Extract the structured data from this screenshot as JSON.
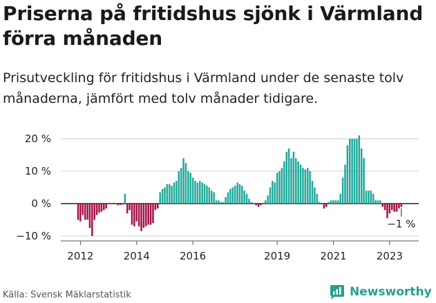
{
  "title": "Priserna på fritidshus sjönk i Värmland förra månaden",
  "subtitle": "Prisutveckling för fritidshus i Värmland under de senaste tolv månaderna, jämfört med tolv månader tidigare.",
  "source": "Källa: Svensk Mäklarstatistik",
  "brand": {
    "name": "Newsworthy"
  },
  "colors": {
    "positive": "#1fa99a",
    "negative": "#a3114a",
    "zero_line": "#222222",
    "grid": "#cfcfcf"
  },
  "chart_data": {
    "type": "bar",
    "x_start": "2011-12",
    "x_unit": "month",
    "ylim": [
      -11,
      22
    ],
    "y_ticks": [
      20,
      10,
      0,
      -10
    ],
    "y_tick_labels": [
      "20 %",
      "10 %",
      "0 %",
      "−10 %"
    ],
    "x_tick_labels": [
      "2012",
      "2014",
      "2016",
      "2019",
      "2021",
      "2023"
    ],
    "x_tick_years": [
      2012,
      2014,
      2016,
      2019,
      2021,
      2023
    ],
    "grid": true,
    "annotation": {
      "text": "−1 %"
    },
    "values": [
      -5,
      -5.5,
      -3.5,
      -5,
      -5,
      -7.5,
      -10,
      -5,
      -3.5,
      -2.8,
      -2.5,
      -2,
      -1.5,
      0,
      0,
      0,
      0,
      -0.5,
      -0.4,
      -0.3,
      3,
      -3,
      -2,
      -6.5,
      -7,
      -5.5,
      -7,
      -8.5,
      -7.5,
      -7,
      -6.5,
      -6.5,
      -6,
      -2,
      -1.5,
      3.5,
      4.5,
      5,
      6,
      6,
      5.5,
      6.5,
      7,
      10,
      11,
      14,
      12.5,
      10,
      9.5,
      8,
      7,
      6.5,
      7,
      6.5,
      6,
      5.5,
      5,
      4,
      3.5,
      1,
      1,
      0.5,
      0.5,
      2,
      3.5,
      4.5,
      5,
      5.5,
      6.5,
      6,
      5.5,
      4,
      3,
      1.5,
      0.5,
      0,
      -0.5,
      -1,
      -0.5,
      0,
      1,
      2.5,
      5,
      7,
      6.5,
      9.5,
      10,
      11,
      13,
      16,
      17,
      14,
      16,
      14,
      13,
      12,
      11,
      10.5,
      11,
      10,
      7,
      5,
      3,
      0.5,
      0,
      -1.5,
      -1,
      0.5,
      1,
      1,
      1,
      1,
      3,
      8,
      12,
      18,
      20,
      20,
      20,
      20,
      21,
      17,
      14,
      4,
      4,
      4,
      3,
      1,
      1,
      1,
      -1,
      -2,
      -4.5,
      -3,
      -2,
      -2.5,
      -2.5,
      -1.5,
      -1
    ]
  }
}
